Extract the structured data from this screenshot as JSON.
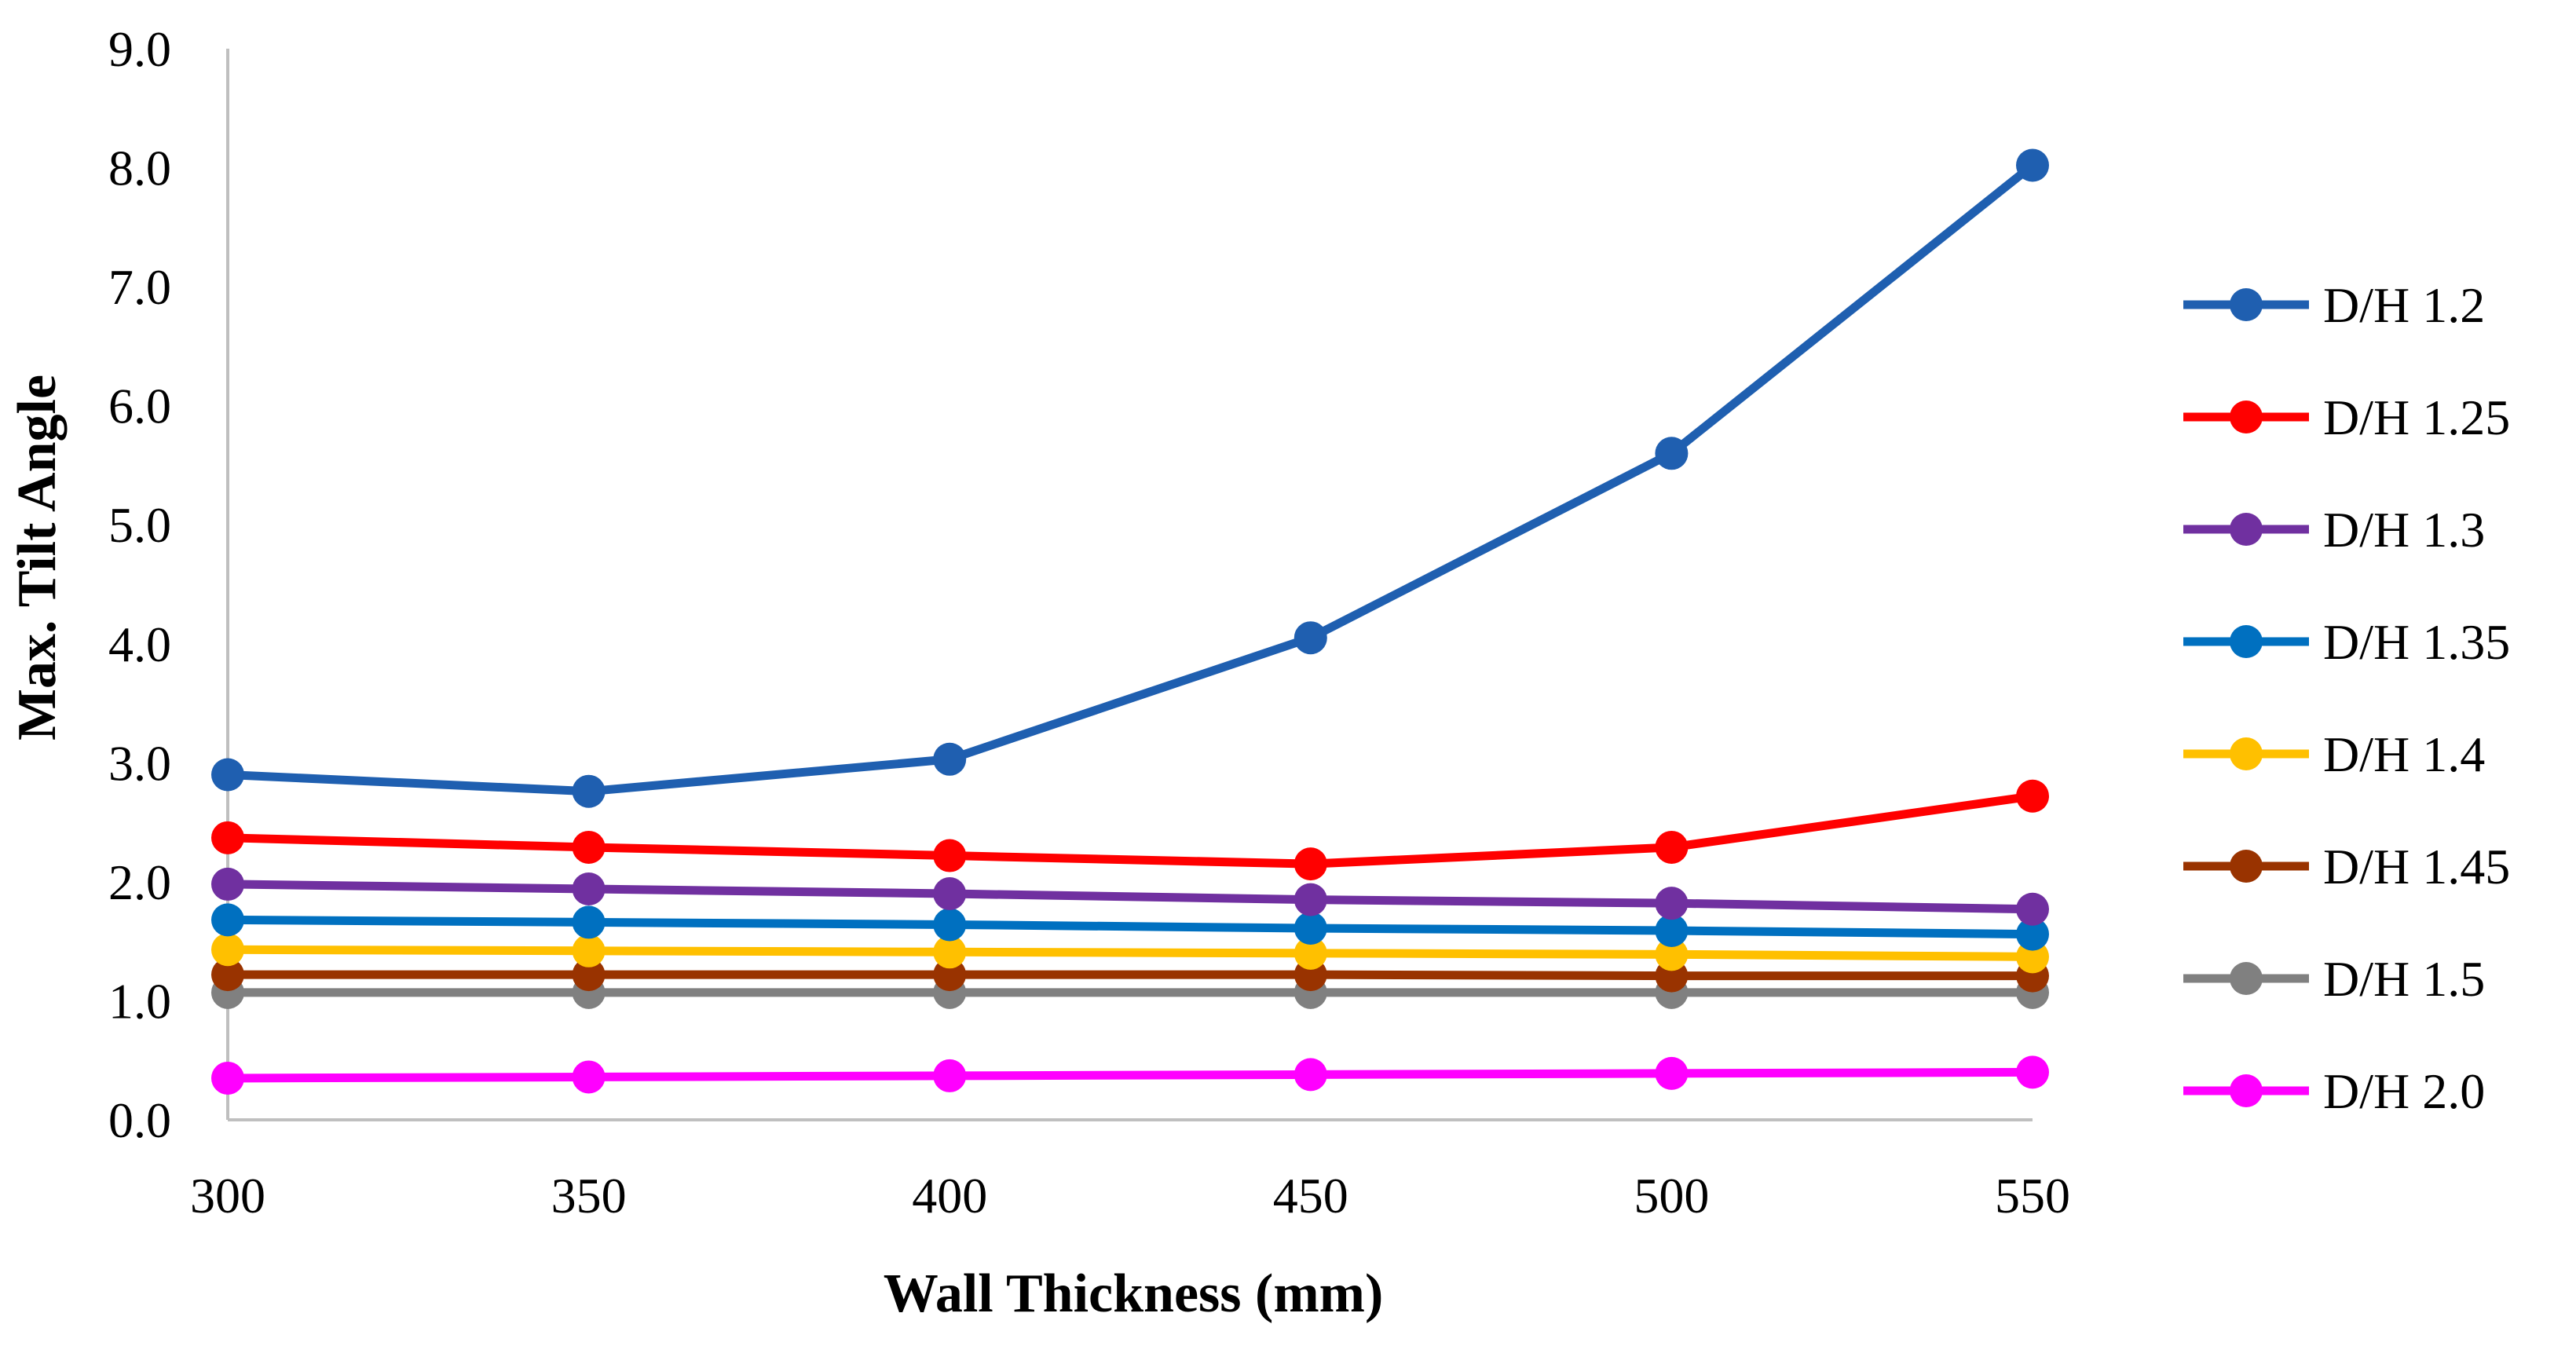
{
  "chart_data": {
    "type": "line",
    "title": "",
    "xlabel": "Wall Thickness (mm)",
    "ylabel": "Max. Tilt Angle",
    "x": [
      300,
      350,
      400,
      450,
      500,
      550
    ],
    "x_tick_labels": [
      "300",
      "350",
      "400",
      "450",
      "500",
      "550"
    ],
    "ylim": [
      0,
      9
    ],
    "y_ticks": [
      0,
      1,
      2,
      3,
      4,
      5,
      6,
      7,
      8,
      9
    ],
    "y_tick_labels": [
      "0.0",
      "1.0",
      "2.0",
      "3.0",
      "4.0",
      "5.0",
      "6.0",
      "7.0",
      "8.0",
      "9.0"
    ],
    "grid": false,
    "legend_position": "right",
    "series": [
      {
        "name": "D/H 1.2",
        "color": "#1f5fb0",
        "values": [
          2.9,
          2.76,
          3.03,
          4.05,
          5.6,
          8.02
        ]
      },
      {
        "name": "D/H 1.25",
        "color": "#ff0000",
        "values": [
          2.37,
          2.29,
          2.22,
          2.15,
          2.29,
          2.72
        ]
      },
      {
        "name": "D/H 1.3",
        "color": "#7030a0",
        "values": [
          1.98,
          1.94,
          1.9,
          1.85,
          1.82,
          1.77
        ]
      },
      {
        "name": "D/H 1.35",
        "color": "#0070c0",
        "values": [
          1.68,
          1.66,
          1.64,
          1.61,
          1.59,
          1.56
        ]
      },
      {
        "name": "D/H 1.4",
        "color": "#ffc000",
        "values": [
          1.43,
          1.42,
          1.41,
          1.4,
          1.39,
          1.37
        ]
      },
      {
        "name": "D/H 1.45",
        "color": "#993300",
        "values": [
          1.22,
          1.22,
          1.22,
          1.22,
          1.21,
          1.21
        ]
      },
      {
        "name": "D/H 1.5",
        "color": "#808080",
        "values": [
          1.07,
          1.07,
          1.07,
          1.07,
          1.07,
          1.07
        ]
      },
      {
        "name": "D/H 2.0",
        "color": "#ff00ff",
        "values": [
          0.35,
          0.36,
          0.37,
          0.38,
          0.39,
          0.4
        ]
      }
    ]
  }
}
